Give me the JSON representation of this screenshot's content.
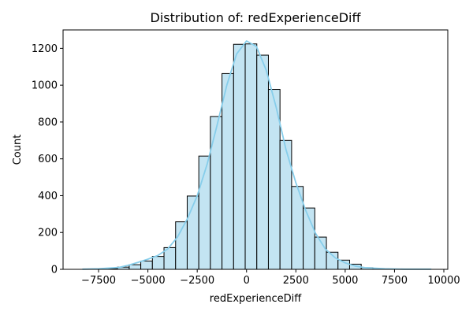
{
  "chart_data": {
    "type": "histogram",
    "title": "Distribution of: redExperienceDiff",
    "xlabel": "redExperienceDiff",
    "ylabel": "Count",
    "xlim": [
      -9300,
      10200
    ],
    "ylim": [
      0,
      1300
    ],
    "xticks": [
      -7500,
      -5000,
      -2500,
      0,
      2500,
      5000,
      7500,
      10000
    ],
    "xtick_labels": [
      "−7500",
      "−5000",
      "−2500",
      "0",
      "2500",
      "5000",
      "7500",
      "10000"
    ],
    "yticks": [
      0,
      200,
      400,
      600,
      800,
      1000,
      1200
    ],
    "ytick_labels": [
      "0",
      "200",
      "400",
      "600",
      "800",
      "1000",
      "1200"
    ],
    "bin_edges": [
      -8300,
      -7712,
      -7124,
      -6536,
      -5948,
      -5360,
      -4772,
      -4184,
      -3596,
      -3008,
      -2420,
      -1832,
      -1244,
      -656,
      -68,
      520,
      1108,
      1696,
      2284,
      2872,
      3460,
      4048,
      4636,
      5224,
      5812,
      6400,
      6988,
      7576,
      8164,
      8752,
      9340
    ],
    "counts": [
      1,
      2,
      4,
      12,
      25,
      45,
      70,
      118,
      258,
      398,
      615,
      830,
      1063,
      1222,
      1224,
      1163,
      977,
      700,
      450,
      333,
      175,
      93,
      50,
      28,
      9,
      4,
      2,
      1,
      1,
      1
    ],
    "kde": {
      "x": [
        -8300,
        -7500,
        -6500,
        -6000,
        -5500,
        -5000,
        -4500,
        -4000,
        -3500,
        -3000,
        -2500,
        -2000,
        -1500,
        -1000,
        -500,
        0,
        500,
        1000,
        1500,
        2000,
        2500,
        3000,
        3500,
        4000,
        4500,
        5000,
        5500,
        6000,
        7000,
        8000,
        9340
      ],
      "y": [
        1,
        3,
        10,
        22,
        38,
        55,
        75,
        110,
        175,
        275,
        400,
        570,
        780,
        1000,
        1170,
        1240,
        1210,
        1080,
        880,
        650,
        470,
        320,
        195,
        110,
        62,
        35,
        18,
        9,
        3,
        1,
        1
      ]
    },
    "colors": {
      "bar_fill": "#c3e4f2",
      "bar_edge": "#000000",
      "kde_line": "#87ceeb"
    },
    "grid": false,
    "legend": "none"
  }
}
